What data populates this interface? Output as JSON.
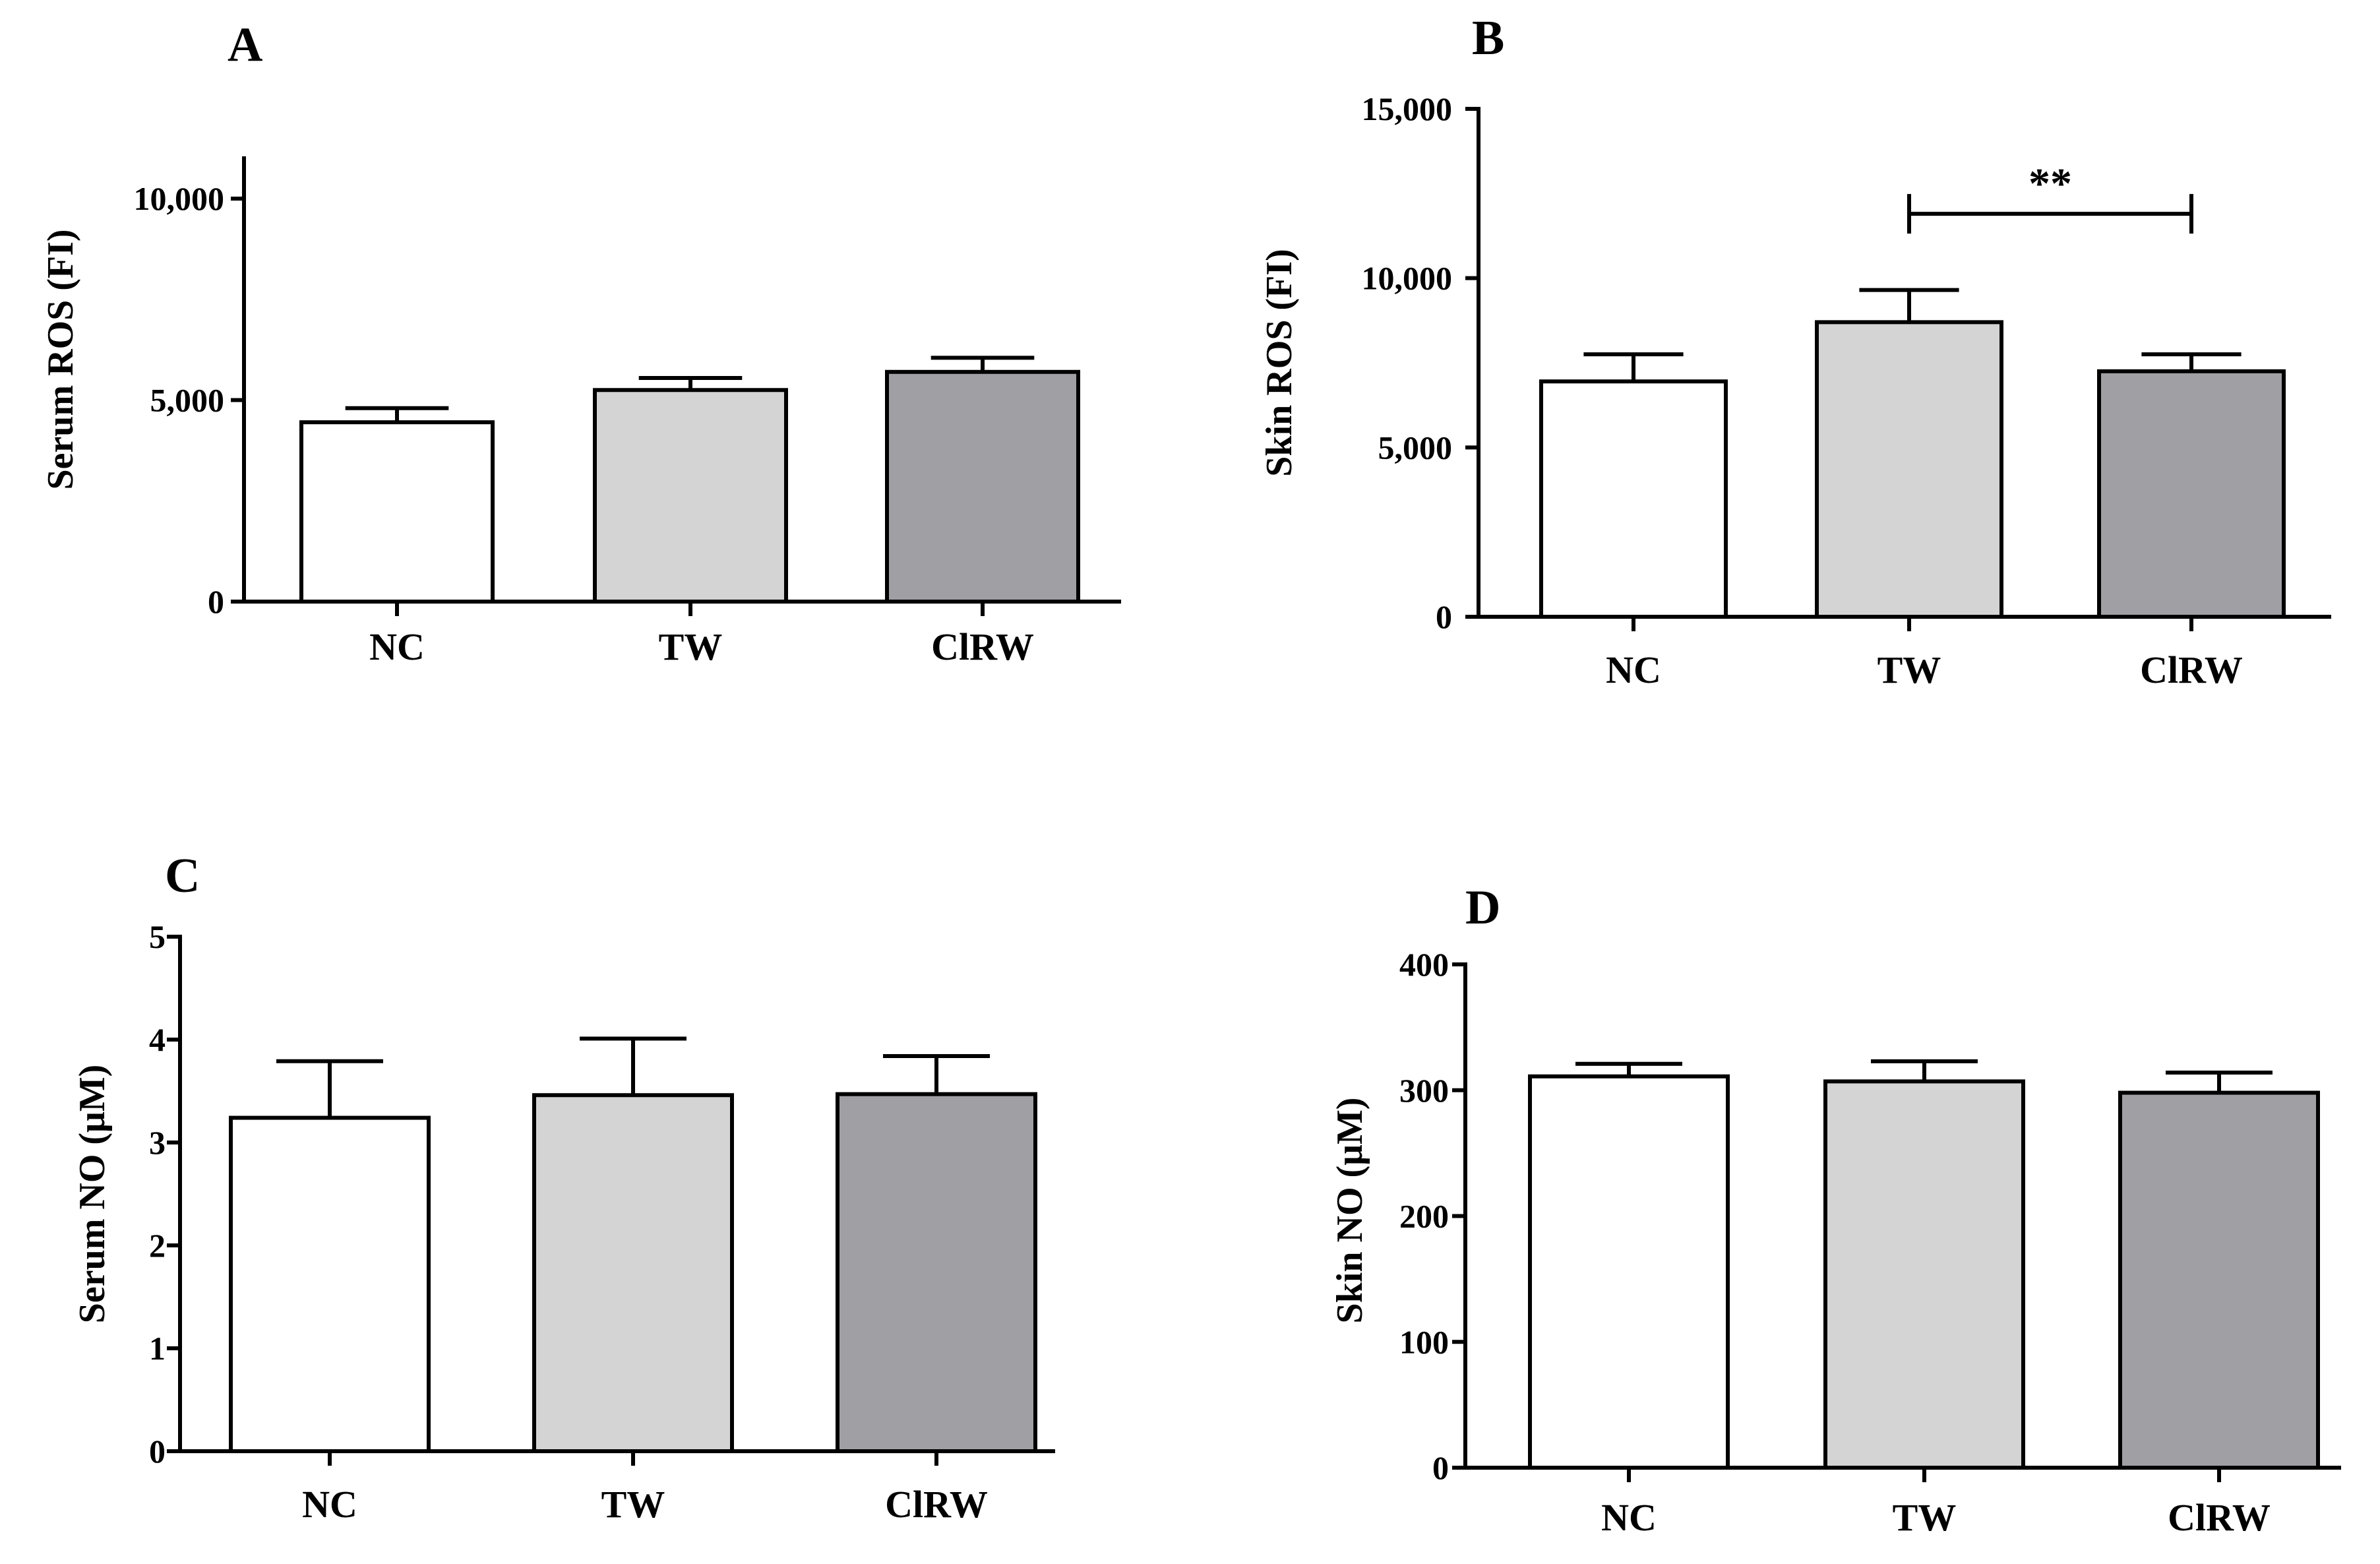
{
  "chart_data": [
    {
      "panel": "A",
      "type": "bar",
      "categories": [
        "NC",
        "TW",
        "ClRW"
      ],
      "values": [
        4450,
        5250,
        5700
      ],
      "errors": [
        350,
        300,
        350
      ],
      "fill_colors": [
        "#ffffff",
        "#d4d4d4",
        "#a09fa4"
      ],
      "ylabel": "Serum  ROS (FI)",
      "ylim": [
        0,
        11000
      ],
      "yticks": [
        0,
        5000,
        10000
      ],
      "yticklabels": [
        "0",
        "5,000",
        "10,000"
      ],
      "significance": []
    },
    {
      "panel": "B",
      "type": "bar",
      "categories": [
        "NC",
        "TW",
        "ClRW"
      ],
      "values": [
        6950,
        8700,
        7250
      ],
      "errors": [
        800,
        950,
        500
      ],
      "fill_colors": [
        "#ffffff",
        "#d4d4d4",
        "#a09fa4"
      ],
      "ylabel": "Skin  ROS (FI)",
      "ylim": [
        0,
        15000
      ],
      "yticks": [
        0,
        5000,
        10000,
        15000
      ],
      "yticklabels": [
        "0",
        "5,000",
        "10,000",
        "15,000"
      ],
      "significance": [
        {
          "from": "TW",
          "to": "ClRW",
          "y": 11900,
          "label": "**"
        }
      ]
    },
    {
      "panel": "C",
      "type": "bar",
      "categories": [
        "NC",
        "TW",
        "ClRW"
      ],
      "values": [
        3.24,
        3.46,
        3.47
      ],
      "errors": [
        0.55,
        0.55,
        0.37
      ],
      "fill_colors": [
        "#ffffff",
        "#d4d4d4",
        "#a09fa4"
      ],
      "ylabel": "Serum NO (μM)",
      "ylim": [
        0,
        5
      ],
      "yticks": [
        0,
        1,
        2,
        3,
        4,
        5
      ],
      "yticklabels": [
        "0",
        "1",
        "2",
        "3",
        "4",
        "5"
      ],
      "significance": []
    },
    {
      "panel": "D",
      "type": "bar",
      "categories": [
        "NC",
        "TW",
        "ClRW"
      ],
      "values": [
        311,
        307,
        298
      ],
      "errors": [
        10,
        16,
        16
      ],
      "fill_colors": [
        "#ffffff",
        "#d4d4d4",
        "#a09fa4"
      ],
      "ylabel": "Skin  NO (μM)",
      "ylim": [
        0,
        400
      ],
      "yticks": [
        0,
        100,
        200,
        300,
        400
      ],
      "yticklabels": [
        "0",
        "100",
        "200",
        "300",
        "400"
      ],
      "significance": []
    }
  ]
}
